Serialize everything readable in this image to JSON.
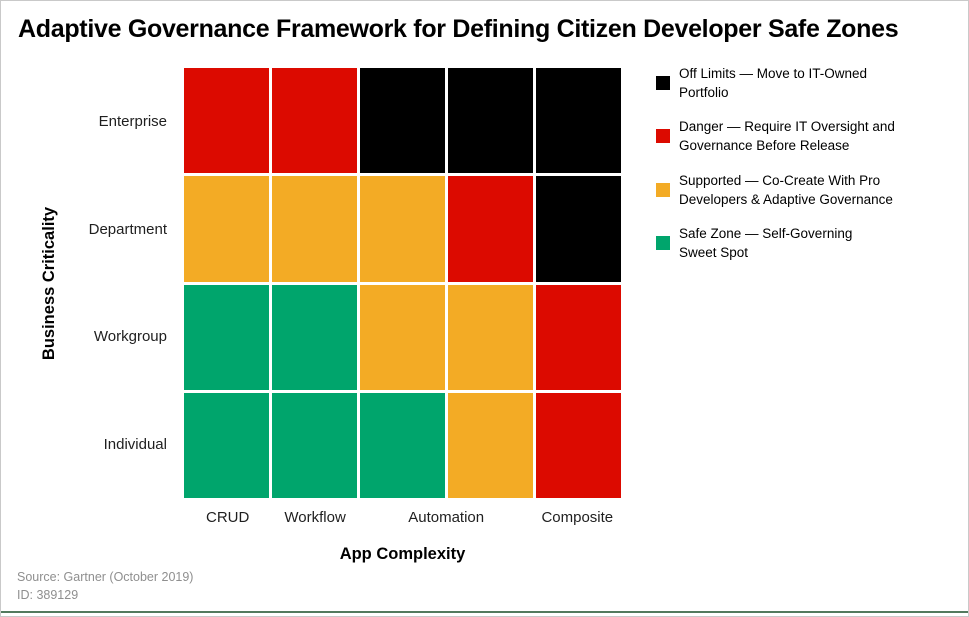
{
  "chart_data": {
    "type": "heatmap",
    "title": "Adaptive Governance Framework for Defining Citizen Developer Safe Zones",
    "xlabel": "App Complexity",
    "ylabel": "Business Criticality",
    "x_categories": [
      "CRUD",
      "Workflow",
      "Automation",
      "Composite"
    ],
    "x_spans": [
      1,
      1,
      2,
      1
    ],
    "grid_columns": 5,
    "y_categories": [
      "Enterprise",
      "Department",
      "Workgroup",
      "Individual"
    ],
    "cells": [
      [
        "danger",
        "danger",
        "off-limits",
        "off-limits",
        "off-limits"
      ],
      [
        "supported",
        "supported",
        "supported",
        "danger",
        "off-limits"
      ],
      [
        "safe",
        "safe",
        "supported",
        "supported",
        "danger"
      ],
      [
        "safe",
        "safe",
        "safe",
        "supported",
        "danger"
      ]
    ],
    "zones": {
      "off-limits": {
        "color": "#000000",
        "legend_lines": [
          "Off Limits — Move to IT-Owned",
          "Portfolio"
        ]
      },
      "danger": {
        "color": "#dc0a00",
        "legend_lines": [
          "Danger — Require IT Oversight and",
          "Governance Before Release"
        ]
      },
      "supported": {
        "color": "#f3ab25",
        "legend_lines": [
          "Supported — Co-Create With Pro",
          "Developers & Adaptive Governance"
        ]
      },
      "safe": {
        "color": "#00a56c",
        "legend_lines": [
          "Safe Zone — Self-Governing",
          "Sweet Spot"
        ]
      }
    },
    "legend_order": [
      "off-limits",
      "danger",
      "supported",
      "safe"
    ],
    "legend_position": "right",
    "grid_gap_color": "#ffffff"
  },
  "footer": {
    "source": "Source: Gartner (October 2019)",
    "id": "ID: 389129"
  },
  "colors": {
    "brand_bar": "#527a5e",
    "border": "#c9c9c9",
    "footer_text": "#8f8f8f",
    "tick_label": "#1f1f1f"
  }
}
